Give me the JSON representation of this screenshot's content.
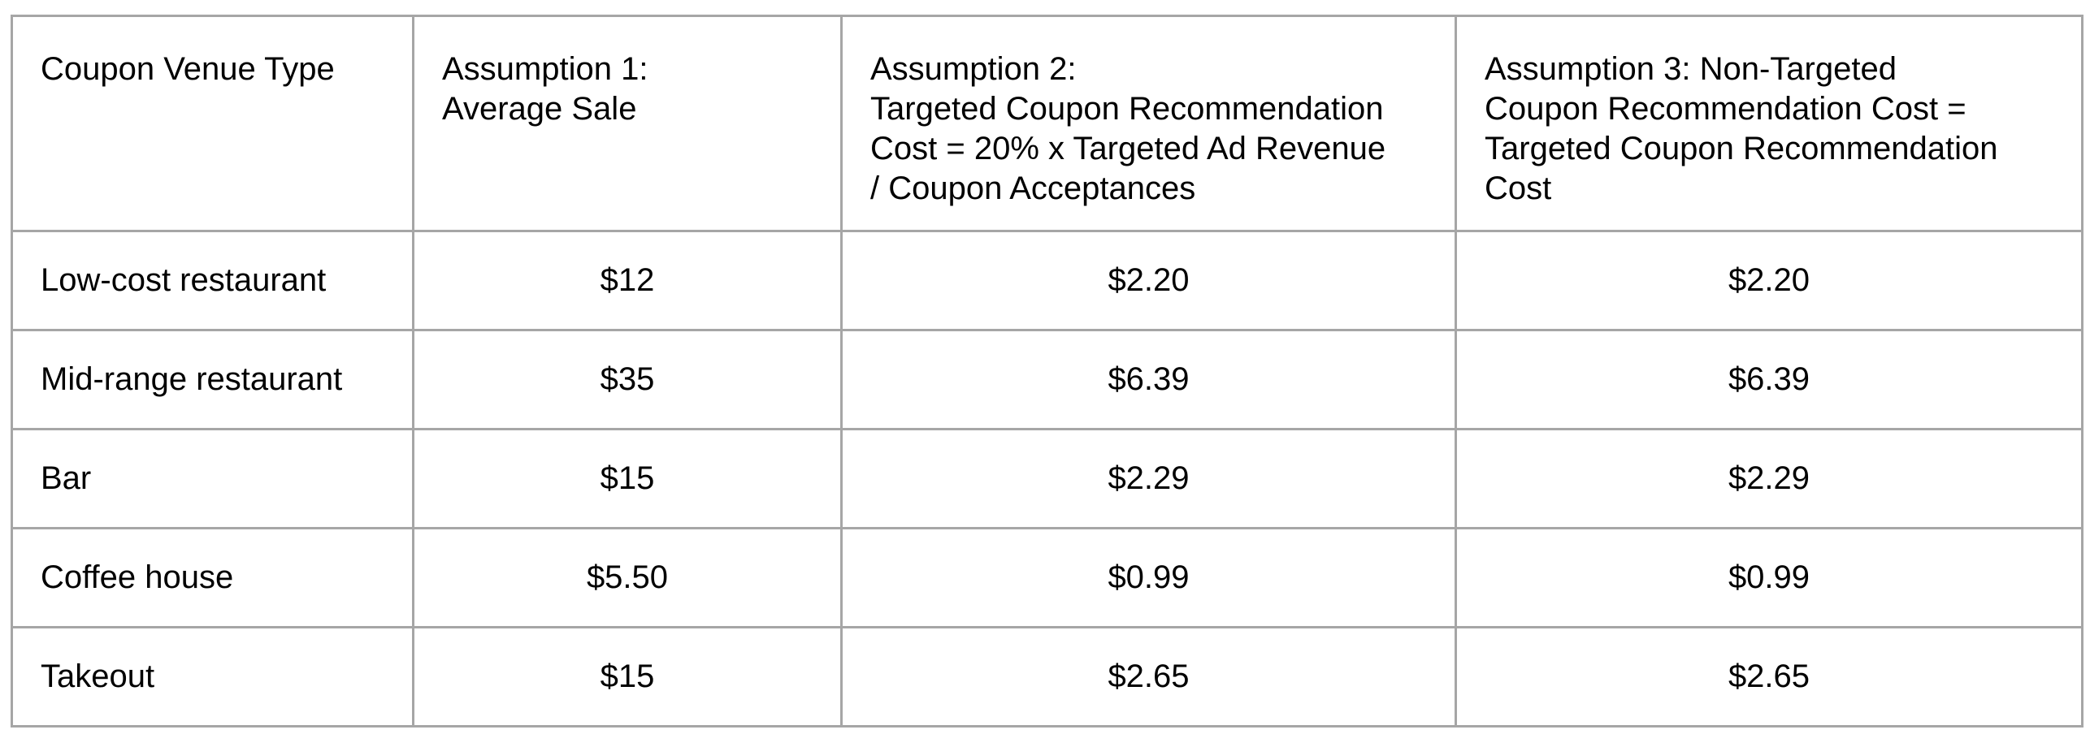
{
  "table": {
    "headers": [
      "Coupon Venue Type",
      "Assumption 1:\nAverage Sale",
      "Assumption 2:\nTargeted Coupon Recommendation\nCost = 20% x Targeted Ad Revenue\n/ Coupon Acceptances",
      "Assumption 3: Non-Targeted\nCoupon Recommendation Cost =\nTargeted Coupon Recommendation\nCost"
    ],
    "rows": [
      [
        "Low-cost restaurant",
        "$12",
        "$2.20",
        "$2.20"
      ],
      [
        "Mid-range restaurant",
        "$35",
        "$6.39",
        "$6.39"
      ],
      [
        "Bar",
        "$15",
        "$2.29",
        "$2.29"
      ],
      [
        "Coffee house",
        "$5.50",
        "$0.99",
        "$0.99"
      ],
      [
        "Takeout",
        "$15",
        "$2.65",
        "$2.65"
      ]
    ]
  }
}
